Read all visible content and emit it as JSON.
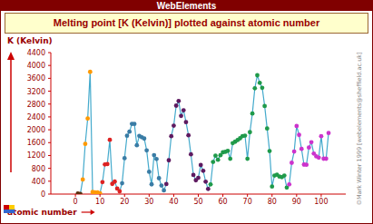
{
  "chart_data": {
    "type": "line",
    "title": "WebElements",
    "subtitle": "Melting point [K (Kelvin)] plotted against atomic number",
    "y_label": "K (Kelvin)",
    "x_label": "atomic number",
    "annotations": [
      "©Mark Winter 1999 [webelements@sheffield.ac.uk]"
    ],
    "grid": false,
    "xlim": [
      -10,
      110
    ],
    "xticks": [
      0,
      10,
      20,
      30,
      40,
      50,
      60,
      70,
      80,
      90,
      100
    ],
    "ylim": [
      0,
      4400
    ],
    "yticks": [
      0,
      400,
      800,
      1200,
      1600,
      2000,
      2400,
      2800,
      3200,
      3600,
      4000,
      4400
    ],
    "x": [
      1,
      2,
      3,
      4,
      5,
      6,
      7,
      8,
      9,
      10,
      11,
      12,
      13,
      14,
      15,
      16,
      17,
      18,
      19,
      20,
      21,
      22,
      23,
      24,
      25,
      26,
      27,
      28,
      29,
      30,
      31,
      32,
      33,
      34,
      35,
      36,
      37,
      38,
      39,
      40,
      41,
      42,
      43,
      44,
      45,
      46,
      47,
      48,
      49,
      50,
      51,
      52,
      53,
      54,
      55,
      56,
      57,
      58,
      59,
      60,
      61,
      62,
      63,
      64,
      65,
      66,
      67,
      68,
      69,
      70,
      71,
      72,
      73,
      74,
      75,
      76,
      77,
      78,
      79,
      80,
      81,
      82,
      83,
      84,
      85,
      86,
      87,
      88,
      89,
      90,
      91,
      92,
      93,
      94,
      95,
      96,
      97,
      98,
      99,
      100,
      101,
      102,
      103
    ],
    "series": [
      {
        "color": "#44aacc",
        "marker": "circle",
        "values": [
          14,
          1,
          454,
          1560,
          2349,
          3800,
          63,
          54,
          53,
          25,
          371,
          923,
          933,
          1687,
          317,
          388,
          172,
          84,
          337,
          1115,
          1814,
          1941,
          2183,
          2180,
          1519,
          1811,
          1768,
          1728,
          1358,
          693,
          303,
          1211,
          1090,
          494,
          266,
          116,
          312,
          1050,
          1799,
          2128,
          2750,
          2896,
          2430,
          2607,
          2237,
          1828,
          1235,
          594,
          430,
          505,
          904,
          723,
          387,
          161,
          302,
          1000,
          1193,
          1068,
          1208,
          1297,
          1315,
          1345,
          1099,
          1585,
          1629,
          1680,
          1734,
          1802,
          1818,
          1097,
          1925,
          2506,
          3290,
          3695,
          3459,
          3306,
          2739,
          2041,
          1337,
          234,
          577,
          601,
          544,
          527,
          575,
          202,
          300,
          973,
          1323,
          2115,
          1841,
          1405,
          917,
          913,
          1449,
          1613,
          1259,
          1173,
          1133,
          1800,
          1100,
          1100,
          1900
        ],
        "colors": [
          "#5a2d0c",
          "#5a2d0c",
          "#ff9900",
          "#ff9900",
          "#ff9900",
          "#ff9900",
          "#ff9900",
          "#ff9900",
          "#ff9900",
          "#ff9900",
          "#dd2222",
          "#dd2222",
          "#dd2222",
          "#dd2222",
          "#dd2222",
          "#dd2222",
          "#dd2222",
          "#dd2222",
          "#3a7ca5",
          "#3a7ca5",
          "#3a7ca5",
          "#3a7ca5",
          "#3a7ca5",
          "#3a7ca5",
          "#3a7ca5",
          "#3a7ca5",
          "#3a7ca5",
          "#3a7ca5",
          "#3a7ca5",
          "#3a7ca5",
          "#3a7ca5",
          "#3a7ca5",
          "#3a7ca5",
          "#3a7ca5",
          "#3a7ca5",
          "#3a7ca5",
          "#5e1a60",
          "#5e1a60",
          "#5e1a60",
          "#5e1a60",
          "#5e1a60",
          "#5e1a60",
          "#5e1a60",
          "#5e1a60",
          "#5e1a60",
          "#5e1a60",
          "#5e1a60",
          "#5e1a60",
          "#5e1a60",
          "#5e1a60",
          "#5e1a60",
          "#5e1a60",
          "#5e1a60",
          "#5e1a60",
          "#1f9a4a",
          "#1f9a4a",
          "#1f9a4a",
          "#1f9a4a",
          "#1f9a4a",
          "#1f9a4a",
          "#1f9a4a",
          "#1f9a4a",
          "#1f9a4a",
          "#1f9a4a",
          "#1f9a4a",
          "#1f9a4a",
          "#1f9a4a",
          "#1f9a4a",
          "#1f9a4a",
          "#1f9a4a",
          "#1f9a4a",
          "#1f9a4a",
          "#1f9a4a",
          "#1f9a4a",
          "#1f9a4a",
          "#1f9a4a",
          "#1f9a4a",
          "#1f9a4a",
          "#1f9a4a",
          "#1f9a4a",
          "#1f9a4a",
          "#1f9a4a",
          "#1f9a4a",
          "#1f9a4a",
          "#1f9a4a",
          "#1f9a4a",
          "#cc33cc",
          "#cc33cc",
          "#cc33cc",
          "#cc33cc",
          "#cc33cc",
          "#cc33cc",
          "#cc33cc",
          "#cc33cc",
          "#cc33cc",
          "#cc33cc",
          "#cc33cc",
          "#cc33cc",
          "#cc33cc",
          "#cc33cc",
          "#cc33cc",
          "#cc33cc",
          "#cc33cc"
        ]
      }
    ]
  }
}
